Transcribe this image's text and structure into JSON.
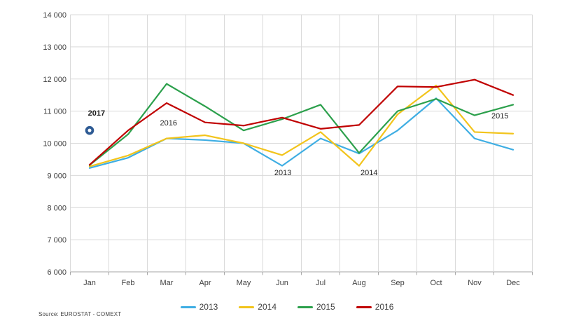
{
  "source": {
    "text": "Source: EUROSTAT - COMEXT"
  },
  "chart_data": {
    "type": "line",
    "title": "",
    "xlabel": "",
    "ylabel": "",
    "grid": true,
    "legend_position": "bottom",
    "ylim": [
      6000,
      14000
    ],
    "categories": [
      "Jan",
      "Feb",
      "Mar",
      "Apr",
      "May",
      "Jun",
      "Jul",
      "Aug",
      "Sep",
      "Oct",
      "Nov",
      "Dec"
    ],
    "y_axis_ticks": [
      {
        "v": 14000,
        "label": "14 000"
      },
      {
        "v": 13000,
        "label": "13 000"
      },
      {
        "v": 12000,
        "label": "12 000"
      },
      {
        "v": 11000,
        "label": "11 000"
      },
      {
        "v": 10000,
        "label": "10 000"
      },
      {
        "v": 9000,
        "label": "9 000"
      },
      {
        "v": 8000,
        "label": "8 000"
      },
      {
        "v": 7000,
        "label": "7 000"
      },
      {
        "v": 6000,
        "label": "6 000"
      }
    ],
    "series": [
      {
        "name": "2013",
        "color": "#3FAEE3",
        "in_legend": true,
        "marker": false,
        "values": [
          9230,
          9550,
          10150,
          10100,
          10000,
          9300,
          10150,
          9680,
          10400,
          11400,
          10150,
          9800
        ]
      },
      {
        "name": "2014",
        "color": "#F2C41C",
        "in_legend": true,
        "marker": false,
        "values": [
          9280,
          9620,
          10150,
          10250,
          10000,
          9630,
          10350,
          9300,
          10900,
          11800,
          10350,
          10300
        ]
      },
      {
        "name": "2015",
        "color": "#2CA04C",
        "in_legend": true,
        "marker": false,
        "values": [
          9320,
          10280,
          11850,
          11150,
          10400,
          10750,
          11200,
          9700,
          11000,
          11380,
          10870,
          11200
        ]
      },
      {
        "name": "2016",
        "color": "#C00000",
        "in_legend": true,
        "marker": false,
        "values": [
          9330,
          10400,
          11250,
          10650,
          10550,
          10800,
          10450,
          10570,
          11770,
          11750,
          11980,
          11500
        ]
      },
      {
        "name": "2017",
        "color": "#2E5B94",
        "in_legend": false,
        "marker": true,
        "values": [
          10400,
          null,
          null,
          null,
          null,
          null,
          null,
          null,
          null,
          null,
          null,
          null
        ]
      }
    ],
    "annotations": [
      {
        "text": "2017",
        "mx": 0.18,
        "vy": 10930,
        "bold": true
      },
      {
        "text": "2016",
        "mx": 2.05,
        "vy": 10620,
        "bold": false
      },
      {
        "text": "2013",
        "mx": 5.02,
        "vy": 9070,
        "bold": false
      },
      {
        "text": "2014",
        "mx": 7.26,
        "vy": 9080,
        "bold": false
      },
      {
        "text": "2015",
        "mx": 10.66,
        "vy": 10830,
        "bold": false
      }
    ]
  }
}
